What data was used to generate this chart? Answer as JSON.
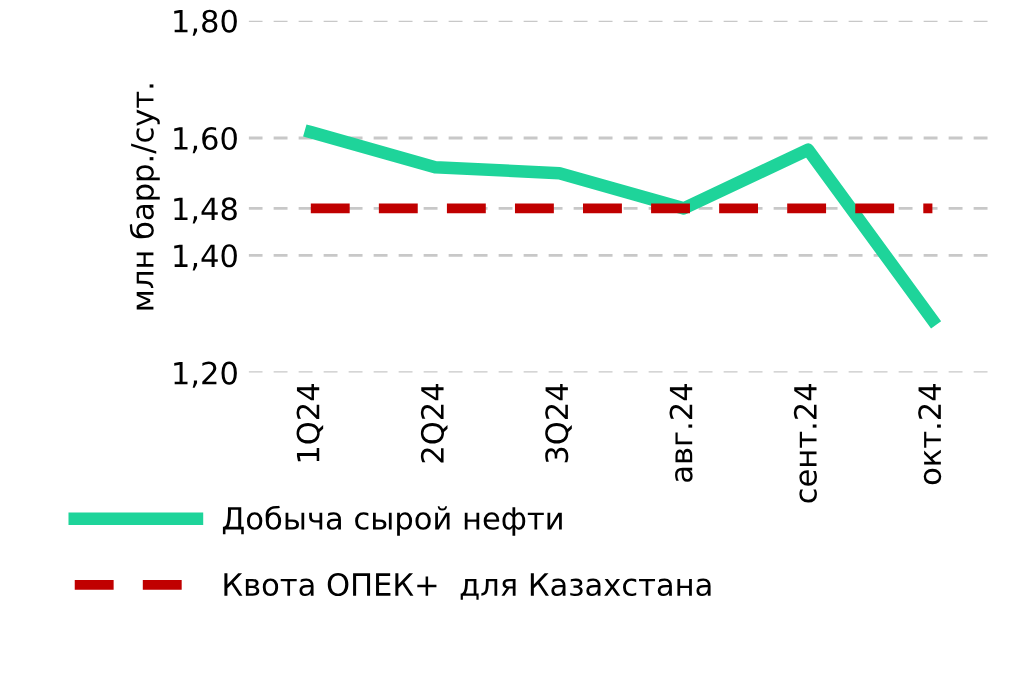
{
  "chart_data": {
    "type": "line",
    "ylabel": "млн барр./сут.",
    "categories": [
      "1Q24",
      "2Q24",
      "3Q24",
      "авг.24",
      "сент.24",
      "окт.24"
    ],
    "series": [
      {
        "name": "Добыча сырой нефти",
        "color": "#1ed49a",
        "values": [
          1.61,
          1.55,
          1.54,
          1.48,
          1.58,
          1.29
        ]
      },
      {
        "name": "Квота ОПЕК+  для Казахстана",
        "color": "#c00000",
        "line_style": "dashed",
        "values": [
          1.48,
          1.48,
          1.48,
          1.48,
          1.48,
          1.48
        ]
      }
    ],
    "ylim": [
      1.2,
      1.8
    ],
    "yticks": [
      {
        "value": 1.2,
        "label": "1,20"
      },
      {
        "value": 1.4,
        "label": "1,40"
      },
      {
        "value": 1.48,
        "label": "1,48"
      },
      {
        "value": 1.6,
        "label": "1,60"
      },
      {
        "value": 1.8,
        "label": "1,80"
      }
    ],
    "grid": "y",
    "legend": "bottom",
    "marker": "none"
  }
}
